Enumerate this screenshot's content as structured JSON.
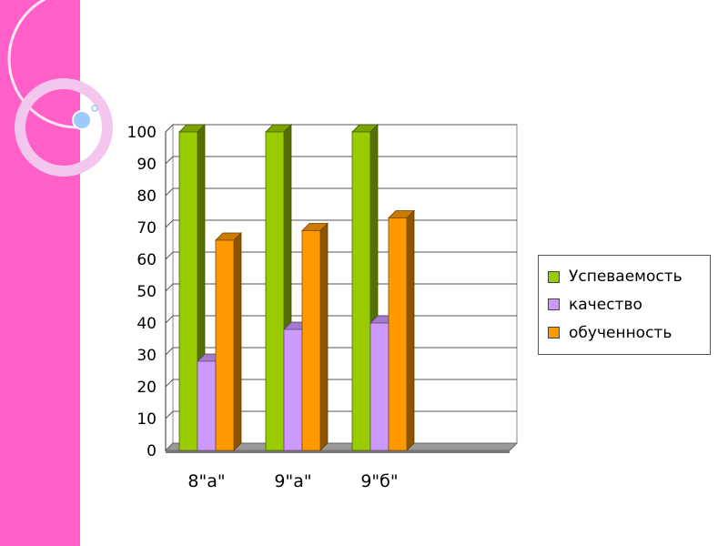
{
  "chart_data": {
    "type": "bar",
    "categories": [
      "8\"а\"",
      "9\"а\"",
      "9\"б\""
    ],
    "series": [
      {
        "name": "Успеваемость",
        "values": [
          100,
          100,
          100
        ],
        "color": "#99cc00"
      },
      {
        "name": "качество",
        "values": [
          28,
          38,
          40
        ],
        "color": "#cc99ff"
      },
      {
        "name": "обученность",
        "values": [
          66,
          69,
          73
        ],
        "color": "#ff9900"
      }
    ],
    "yticks": [
      "0",
      "10",
      "20",
      "30",
      "40",
      "50",
      "60",
      "70",
      "80",
      "90",
      "100"
    ],
    "ylim": [
      0,
      100
    ],
    "grid": true,
    "legend_position": "right",
    "style": "3d-bar"
  }
}
